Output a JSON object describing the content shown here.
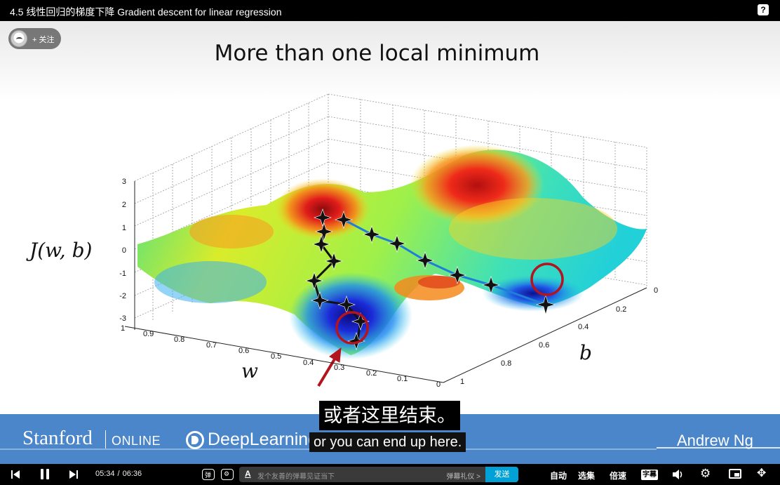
{
  "header": {
    "title": "4.5 线性回归的梯度下降 Gradient descent for linear regression",
    "help_icon": "question-mark-icon"
  },
  "follow": {
    "label": "+ 关注"
  },
  "slide": {
    "title": "More than one local minimum",
    "z_label": "J(w, b)",
    "w_label": "w",
    "b_label": "b",
    "z_ticks": [
      "3",
      "2",
      "1",
      "0",
      "-1",
      "-2",
      "-3"
    ],
    "w_ticks": [
      "1",
      "0.9",
      "0.8",
      "0.7",
      "0.6",
      "0.5",
      "0.4",
      "0.3",
      "0.2",
      "0.1",
      "0"
    ],
    "b_ticks": [
      "0",
      "0.2",
      "0.4",
      "0.6",
      "0.8",
      "1"
    ],
    "colors": {
      "path_dark": "#111111",
      "path_blue": "#1f7fd8",
      "circle": "#b3141e",
      "arrow": "#b3141e"
    }
  },
  "branding": {
    "stanford": "Stanford",
    "online": "ONLINE",
    "deeplearning": "DeepLearning.AI",
    "instructor": "Andrew Ng"
  },
  "subtitles": {
    "zh": "或者这里结束。",
    "en": "or you can end up here."
  },
  "player": {
    "current_time": "05:34",
    "separator": "/",
    "total_time": "06:36",
    "danmaku_placeholder": "发个友善的弹幕见证当下",
    "danmaku_etiquette": "弹幕礼仪 >",
    "send_label": "发送",
    "auto_label": "自动",
    "select_label": "选集",
    "speed_label": "倍速",
    "cc_label": "字幕",
    "accent": "#00a1d6"
  }
}
